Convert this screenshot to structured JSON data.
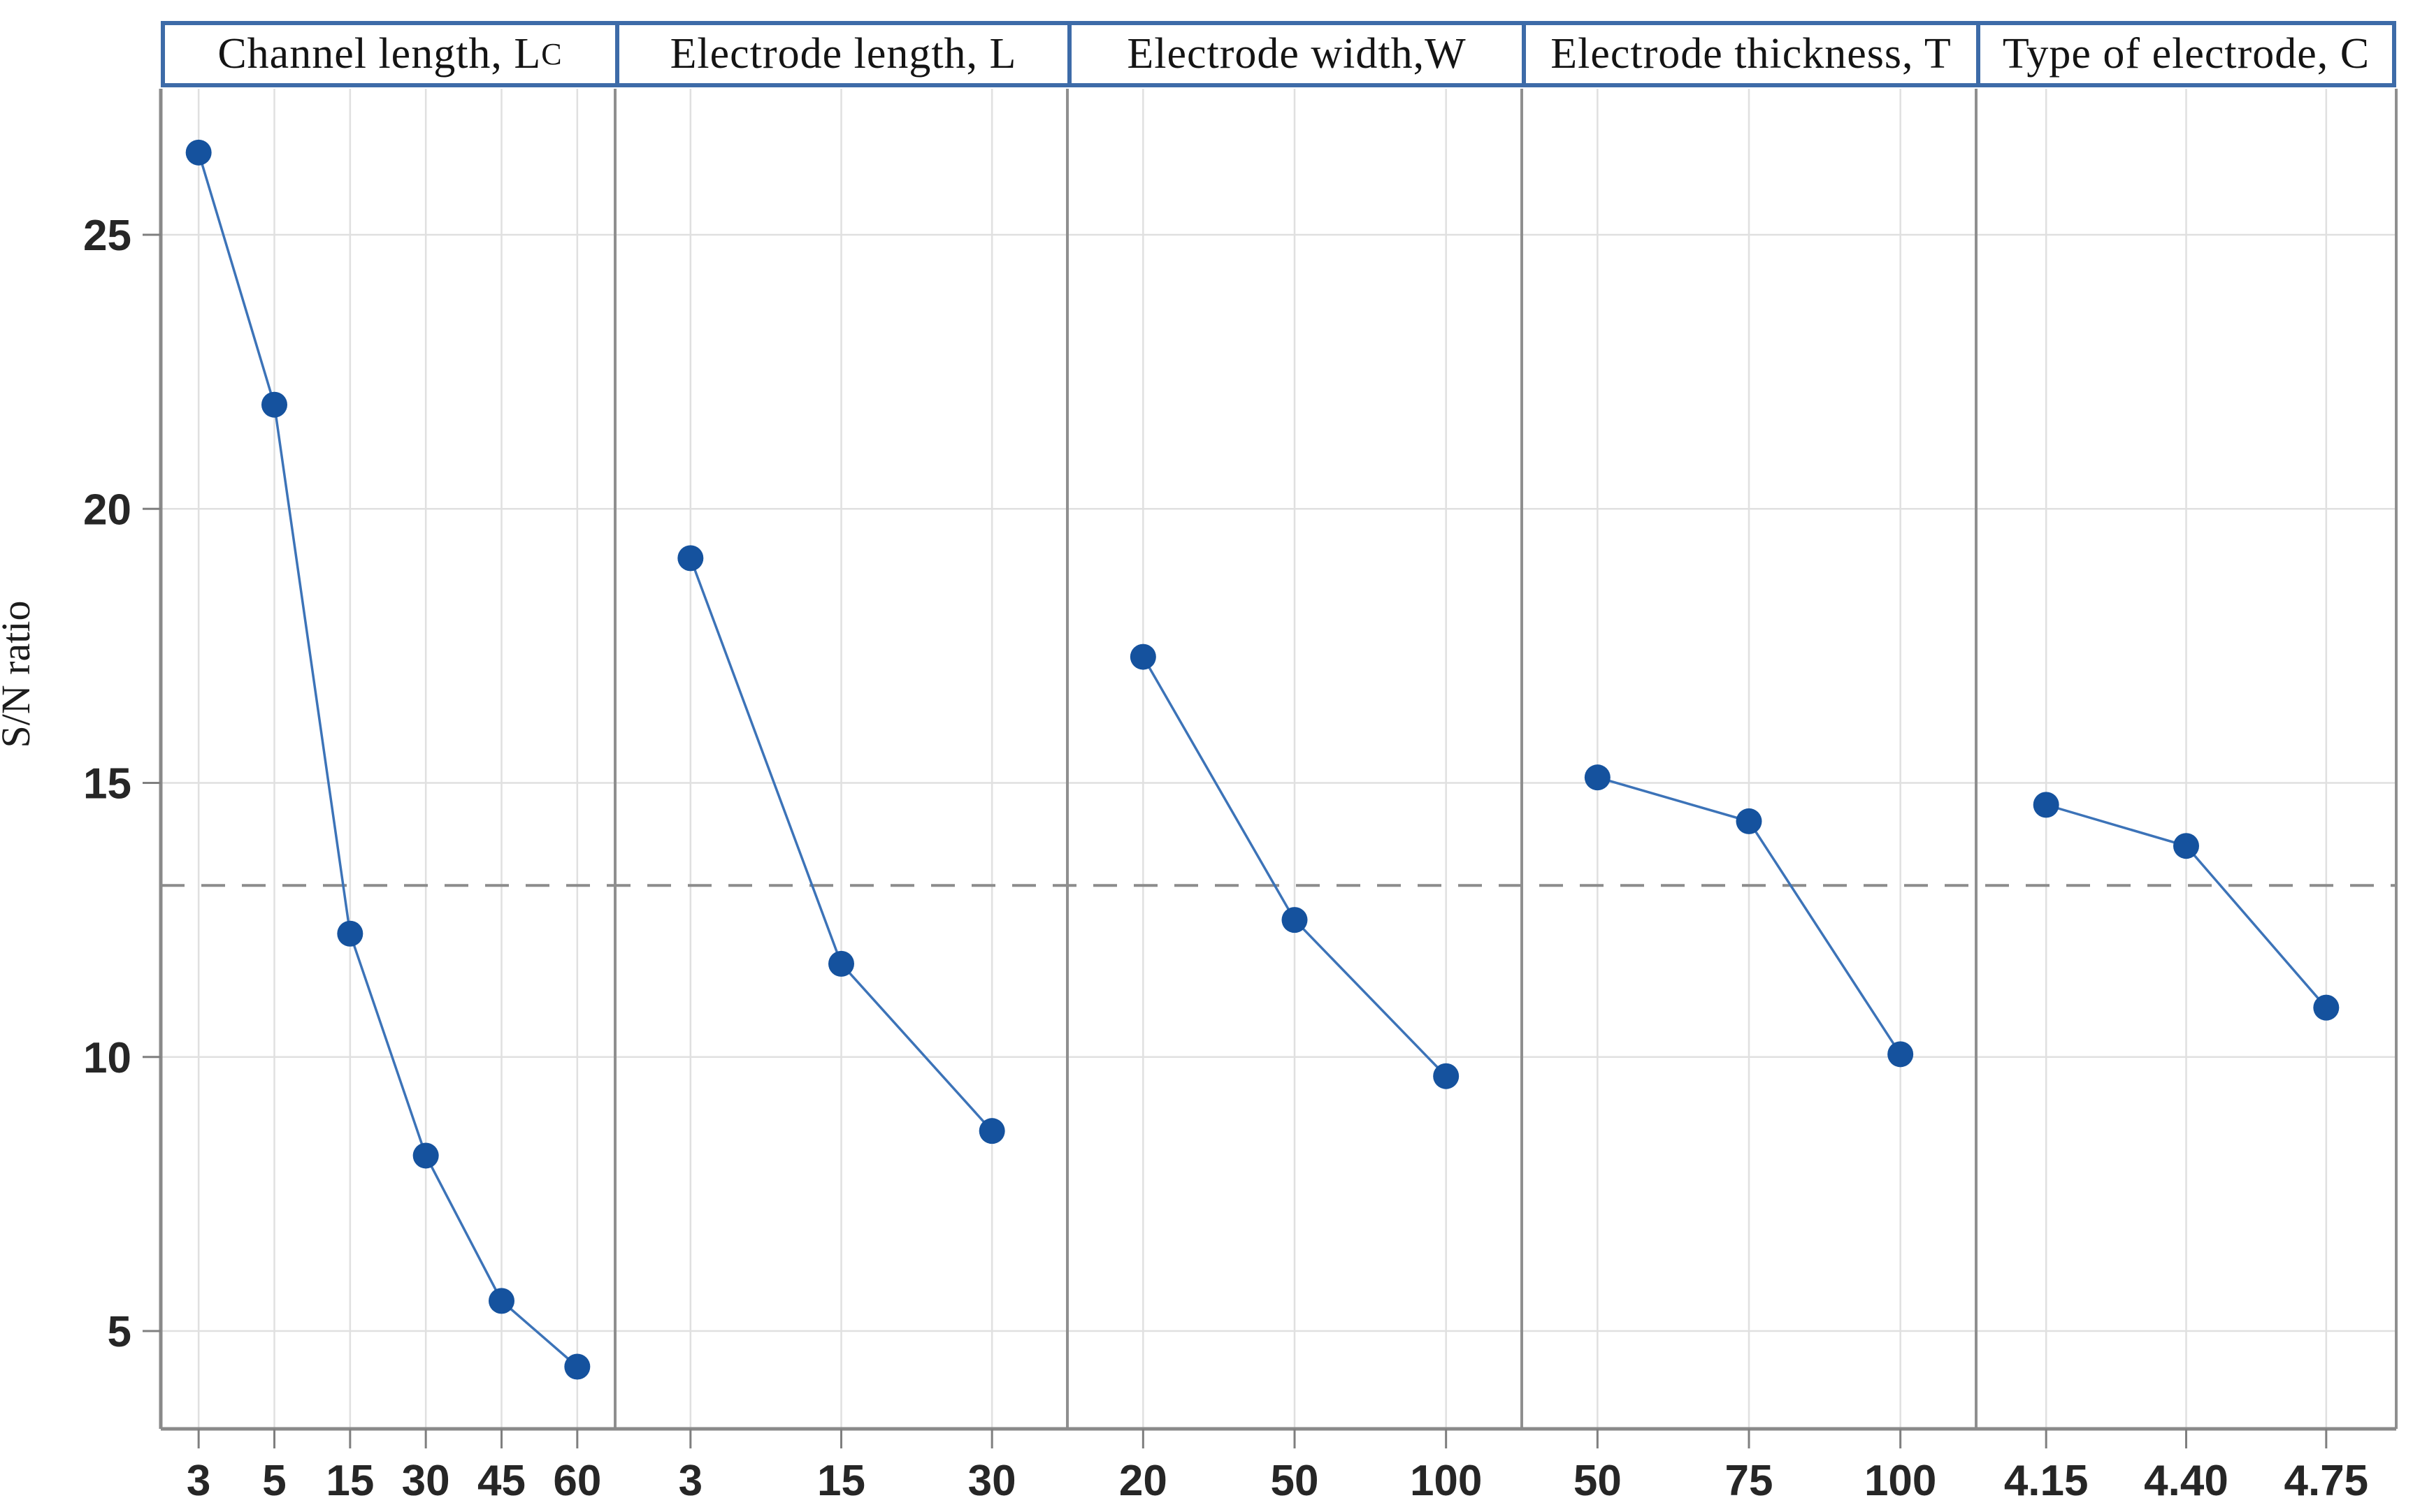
{
  "figure": {
    "background": "#ffffff"
  },
  "chart_data": {
    "type": "line",
    "chart_kind": "main-effects-plot",
    "title": "",
    "ylabel": "S/N ratio",
    "xlabel": "",
    "yticks": [
      5,
      10,
      15,
      20,
      25
    ],
    "ylim": [
      3.2,
      27.7
    ],
    "grid": true,
    "reference_line": 13.13,
    "panels": [
      {
        "title": "Channel length, L",
        "title_sub": "C",
        "categories": [
          "3",
          "5",
          "15",
          "30",
          "45",
          "60"
        ],
        "values": [
          26.5,
          21.9,
          12.25,
          8.2,
          5.55,
          4.35
        ]
      },
      {
        "title": "Electrode length, L",
        "title_sub": "",
        "categories": [
          "3",
          "15",
          "30"
        ],
        "values": [
          19.1,
          11.7,
          8.65
        ]
      },
      {
        "title": "Electrode width,W",
        "title_sub": "",
        "categories": [
          "20",
          "50",
          "100"
        ],
        "values": [
          17.3,
          12.5,
          9.65
        ]
      },
      {
        "title": "Electrode thickness, T",
        "title_sub": "",
        "categories": [
          "50",
          "75",
          "100"
        ],
        "values": [
          15.1,
          14.3,
          10.05
        ]
      },
      {
        "title": "Type of electrode, C",
        "title_sub": "",
        "categories": [
          "4.15",
          "4.40",
          "4.75"
        ],
        "values": [
          14.6,
          13.85,
          10.9
        ]
      }
    ],
    "colors": {
      "marker": "#15529e",
      "line": "#3c73b8",
      "header_border": "#3d6ba8",
      "grid": "#e0e0e0",
      "axis": "#8a8a8a",
      "divider": "#8f8f8f",
      "reference": "#8c8c8c",
      "tick": "#7f7f7f",
      "text": "#1c1c1c"
    }
  }
}
